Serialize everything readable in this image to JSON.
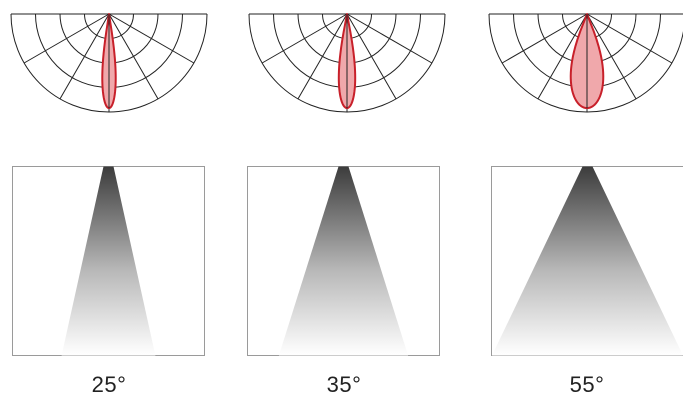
{
  "beams": [
    {
      "angle_label": "25°",
      "polar_half_width_deg": 9,
      "cone_half_angle_deg": 12.5
    },
    {
      "angle_label": "35°",
      "polar_half_width_deg": 11,
      "cone_half_angle_deg": 17.5
    },
    {
      "angle_label": "55°",
      "polar_half_width_deg": 22,
      "cone_half_angle_deg": 27.5
    }
  ],
  "colors": {
    "grid_line": "#222222",
    "lobe_fill": "#f0a8ab",
    "lobe_stroke": "#c8202a",
    "cone_dark": "#3c3c3c",
    "cone_light": "#ffffff",
    "box_border": "#9a9a9a"
  }
}
